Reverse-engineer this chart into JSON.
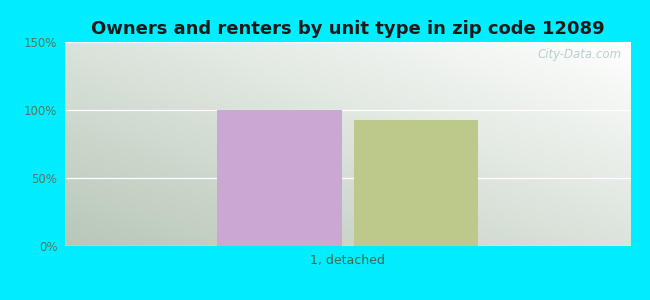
{
  "title": "Owners and renters by unit type in zip code 12089",
  "categories": [
    "1, detached"
  ],
  "owner_values": [
    100.0
  ],
  "renter_values": [
    93.0
  ],
  "owner_color": "#c9a8d4",
  "renter_color": "#bdc98a",
  "ylim": [
    0,
    150
  ],
  "yticks": [
    0,
    50,
    100,
    150
  ],
  "ytick_labels": [
    "0%",
    "50%",
    "100%",
    "150%"
  ],
  "outer_bg": "#00eeff",
  "watermark": "City-Data.com",
  "title_fontsize": 13,
  "bar_width": 0.22,
  "xlabel_color": "#446644",
  "tick_color": "#557755"
}
